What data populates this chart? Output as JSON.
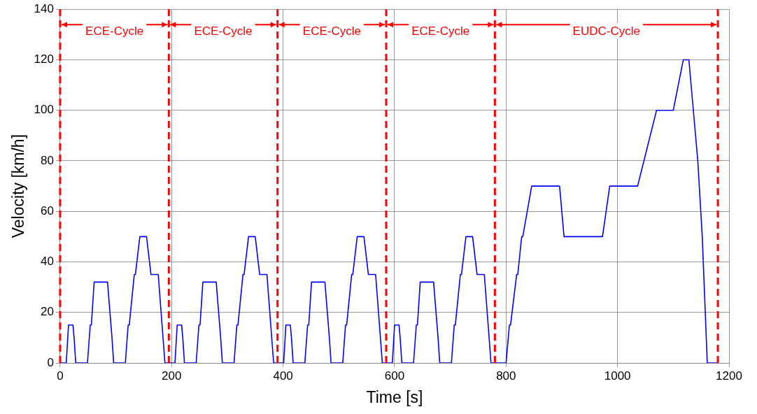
{
  "chart_data": {
    "type": "line",
    "xlabel": "Time [s]",
    "ylabel": "Velocity [km/h]",
    "xlim": [
      0,
      1200
    ],
    "xticks": [
      0,
      200,
      400,
      600,
      800,
      1000,
      1200
    ],
    "ylim": [
      0,
      140
    ],
    "yticks": [
      0,
      20,
      40,
      60,
      80,
      100,
      120,
      140
    ],
    "grid": true,
    "legend": false,
    "marker": "none",
    "line_style": "solid",
    "x": [
      0,
      11,
      15,
      23,
      25,
      28,
      49,
      54,
      56,
      61,
      85,
      93,
      96,
      117,
      122,
      124,
      133,
      135,
      143,
      155,
      163,
      176,
      188,
      195,
      206,
      210,
      218,
      220,
      223,
      244,
      249,
      251,
      256,
      280,
      288,
      291,
      312,
      317,
      319,
      328,
      330,
      338,
      350,
      358,
      371,
      383,
      390,
      401,
      405,
      413,
      415,
      418,
      439,
      444,
      446,
      451,
      475,
      483,
      486,
      507,
      512,
      514,
      523,
      525,
      533,
      545,
      553,
      566,
      578,
      585,
      596,
      600,
      608,
      610,
      613,
      634,
      639,
      641,
      646,
      670,
      678,
      681,
      702,
      707,
      709,
      718,
      720,
      728,
      740,
      748,
      761,
      773,
      780,
      800,
      806,
      808,
      819,
      821,
      828,
      830,
      846,
      896,
      904,
      973,
      986,
      1036,
      1070,
      1100,
      1118,
      1128,
      1144,
      1152,
      1161,
      1180
    ],
    "series": [
      {
        "color": "#0000ff",
        "values": [
          0,
          0,
          15,
          15,
          10,
          0,
          0,
          15,
          15,
          32,
          32,
          10,
          0,
          0,
          15,
          15,
          35,
          35,
          50,
          50,
          35,
          35,
          0,
          0,
          0,
          15,
          15,
          10,
          0,
          0,
          15,
          15,
          32,
          32,
          10,
          0,
          0,
          15,
          15,
          35,
          35,
          50,
          50,
          35,
          35,
          0,
          0,
          0,
          15,
          15,
          10,
          0,
          0,
          15,
          15,
          32,
          32,
          10,
          0,
          0,
          15,
          15,
          35,
          35,
          50,
          50,
          35,
          35,
          0,
          0,
          0,
          15,
          15,
          10,
          0,
          0,
          15,
          15,
          32,
          32,
          10,
          0,
          0,
          15,
          15,
          35,
          35,
          50,
          50,
          35,
          35,
          0,
          0,
          0,
          15,
          15,
          35,
          35,
          50,
          50,
          70,
          70,
          50,
          50,
          70,
          70,
          100,
          100,
          120,
          120,
          80,
          50,
          0,
          0
        ]
      }
    ],
    "ref_lines": [
      {
        "axis": "x",
        "value": 0,
        "color": "#ff0000",
        "line_style": "dashed"
      },
      {
        "axis": "x",
        "value": 195,
        "color": "#ff0000",
        "line_style": "dashed"
      },
      {
        "axis": "x",
        "value": 390,
        "color": "#ff0000",
        "line_style": "dashed"
      },
      {
        "axis": "x",
        "value": 585,
        "color": "#ff0000",
        "line_style": "dashed"
      },
      {
        "axis": "x",
        "value": 780,
        "color": "#ff0000",
        "line_style": "dashed"
      },
      {
        "axis": "x",
        "value": 1180,
        "color": "#ff0000",
        "line_style": "dashed"
      }
    ],
    "annotations": [
      "ECE-Cycle",
      "ECE-Cycle",
      "ECE-Cycle",
      "ECE-Cycle",
      "EUDC-Cycle"
    ]
  }
}
